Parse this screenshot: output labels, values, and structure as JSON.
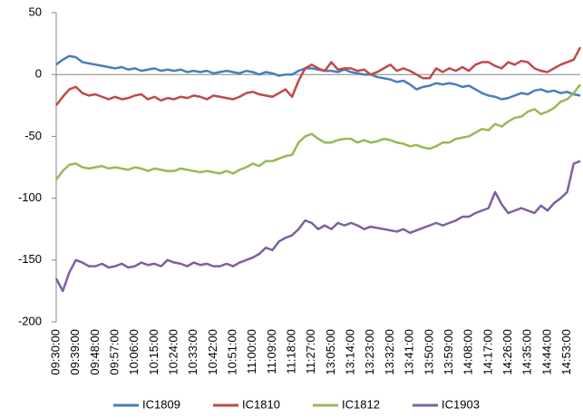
{
  "chart_data": {
    "type": "line",
    "categories": [
      "09:30:00",
      null,
      null,
      "09:39:00",
      null,
      null,
      "09:48:00",
      null,
      null,
      "09:57:00",
      null,
      null,
      "10:06:00",
      null,
      null,
      "10:15:00",
      null,
      null,
      "10:24:00",
      null,
      null,
      "10:33:00",
      null,
      null,
      "10:42:00",
      null,
      null,
      "10:51:00",
      null,
      null,
      "11:00:00",
      null,
      null,
      "11:09:00",
      null,
      null,
      "11:18:00",
      null,
      null,
      "11:27:00",
      null,
      null,
      "13:05:00",
      null,
      null,
      "13:14:00",
      null,
      null,
      "13:23:00",
      null,
      null,
      "13:32:00",
      null,
      null,
      "13:41:00",
      null,
      null,
      "13:50:00",
      null,
      null,
      "13:59:00",
      null,
      null,
      "14:08:00",
      null,
      null,
      "14:17:00",
      null,
      null,
      "14:26:00",
      null,
      null,
      "14:35:00",
      null,
      null,
      "14:44:00",
      null,
      null,
      "14:53:00",
      null,
      null
    ],
    "series": [
      {
        "name": "IC1809",
        "color": "#4a7ebb",
        "values": [
          8,
          12,
          15,
          14,
          10,
          9,
          8,
          7,
          6,
          5,
          6,
          4,
          5,
          3,
          4,
          5,
          3,
          4,
          3,
          4,
          2,
          3,
          2,
          3,
          1,
          2,
          3,
          2,
          1,
          3,
          2,
          0,
          2,
          1,
          -1,
          0,
          0,
          3,
          5,
          5,
          4,
          3,
          3,
          2,
          4,
          2,
          1,
          0,
          0,
          -2,
          -3,
          -4,
          -6,
          -5,
          -8,
          -12,
          -10,
          -9,
          -7,
          -8,
          -7,
          -8,
          -10,
          -9,
          -12,
          -15,
          -17,
          -18,
          -20,
          -19,
          -17,
          -15,
          -16,
          -13,
          -12,
          -14,
          -13,
          -15,
          -14,
          -16,
          -17
        ]
      },
      {
        "name": "IC1810",
        "color": "#be4b48",
        "values": [
          -25,
          -18,
          -12,
          -10,
          -15,
          -17,
          -16,
          -18,
          -20,
          -18,
          -20,
          -19,
          -17,
          -16,
          -20,
          -18,
          -21,
          -19,
          -20,
          -18,
          -19,
          -17,
          -18,
          -20,
          -17,
          -18,
          -19,
          -20,
          -18,
          -15,
          -14,
          -16,
          -17,
          -18,
          -15,
          -12,
          -18,
          -5,
          5,
          8,
          5,
          3,
          10,
          4,
          5,
          5,
          3,
          4,
          0,
          2,
          5,
          8,
          3,
          5,
          3,
          0,
          -3,
          -3,
          5,
          2,
          5,
          3,
          6,
          3,
          8,
          10,
          10,
          7,
          5,
          10,
          8,
          11,
          10,
          5,
          3,
          2,
          5,
          8,
          10,
          12,
          22
        ]
      },
      {
        "name": "IC1812",
        "color": "#98b954",
        "values": [
          -85,
          -78,
          -73,
          -72,
          -75,
          -76,
          -75,
          -74,
          -76,
          -75,
          -76,
          -77,
          -75,
          -76,
          -78,
          -76,
          -77,
          -78,
          -78,
          -76,
          -77,
          -78,
          -79,
          -78,
          -79,
          -80,
          -78,
          -80,
          -77,
          -75,
          -72,
          -74,
          -70,
          -70,
          -68,
          -66,
          -65,
          -55,
          -50,
          -48,
          -52,
          -55,
          -55,
          -53,
          -52,
          -52,
          -55,
          -53,
          -55,
          -54,
          -52,
          -53,
          -55,
          -56,
          -58,
          -57,
          -59,
          -60,
          -58,
          -55,
          -55,
          -52,
          -51,
          -50,
          -47,
          -44,
          -45,
          -40,
          -42,
          -38,
          -35,
          -34,
          -30,
          -28,
          -32,
          -30,
          -27,
          -22,
          -20,
          -15,
          -8
        ]
      },
      {
        "name": "IC1903",
        "color": "#7d60a0",
        "values": [
          -165,
          -175,
          -160,
          -150,
          -152,
          -155,
          -155,
          -153,
          -156,
          -155,
          -153,
          -156,
          -155,
          -152,
          -154,
          -153,
          -155,
          -150,
          -152,
          -153,
          -155,
          -152,
          -154,
          -153,
          -155,
          -155,
          -153,
          -155,
          -152,
          -150,
          -148,
          -145,
          -140,
          -142,
          -135,
          -132,
          -130,
          -125,
          -118,
          -120,
          -125,
          -122,
          -125,
          -120,
          -122,
          -120,
          -122,
          -125,
          -123,
          -124,
          -125,
          -126,
          -127,
          -125,
          -128,
          -126,
          -124,
          -122,
          -120,
          -122,
          -120,
          -118,
          -115,
          -115,
          -112,
          -110,
          -108,
          -95,
          -105,
          -112,
          -110,
          -108,
          -110,
          -112,
          -106,
          -110,
          -104,
          -100,
          -95,
          -72,
          -70
        ]
      }
    ],
    "ylim": [
      -200,
      50
    ],
    "yticks": [
      50,
      0,
      -50,
      -100,
      -150,
      -200
    ],
    "legend": "bottom"
  }
}
